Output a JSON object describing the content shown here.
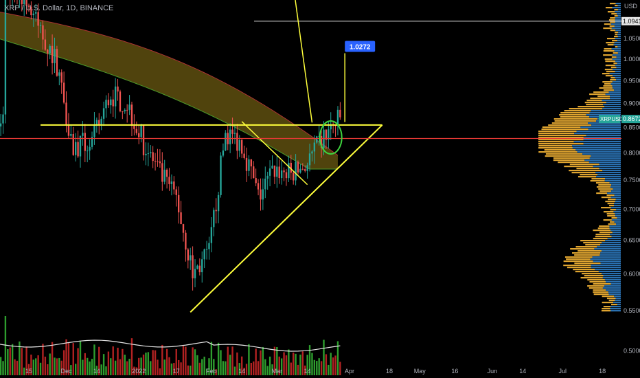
{
  "header": {
    "title": "XRP / U.S. Dollar, 1D, BINANCE",
    "currency": "USD"
  },
  "colors": {
    "background": "#000000",
    "up": "#26a69a",
    "down": "#ef5350",
    "vol_up": "#2e9e2e",
    "vol_down": "#b22222",
    "pattern": "#ffff3b",
    "support": "#e53935",
    "volume_profile_up": "#e0a530",
    "volume_profile_down": "#2f7dc4",
    "cloud": "#6b5a12",
    "callout": "#2962ff"
  },
  "chart_data": {
    "type": "candlestick",
    "title": "XRP / U.S. Dollar, 1D, BINANCE",
    "y_axis": {
      "scale": "log",
      "ticks": [
        "1.0500",
        "1.0000",
        "0.9500",
        "0.9000",
        "0.8500",
        "0.8000",
        "0.7500",
        "0.7000",
        "0.6500",
        "0.6000",
        "0.5500",
        "0.5000"
      ],
      "tick_values": [
        1.05,
        1.0,
        0.95,
        0.9,
        0.85,
        0.8,
        0.75,
        0.7,
        0.65,
        0.6,
        0.55,
        0.5
      ]
    },
    "x_axis": {
      "ticks": [
        "15",
        "Dec",
        "14",
        "2022",
        "17",
        "Feb",
        "14",
        "Mar",
        "14",
        "Apr",
        "18",
        "May",
        "16",
        "Jun",
        "14",
        "Jul",
        "18"
      ],
      "tick_dates": [
        "2021-11-15",
        "2021-12-01",
        "2021-12-14",
        "2022-01-01",
        "2022-01-17",
        "2022-02-01",
        "2022-02-14",
        "2022-03-01",
        "2022-03-14",
        "2022-04-01",
        "2022-04-18",
        "2022-05-01",
        "2022-05-16",
        "2022-06-01",
        "2022-06-14",
        "2022-07-01",
        "2022-07-18"
      ]
    },
    "last_price": {
      "symbol": "XRPUSD",
      "value": "0.8672"
    },
    "level_label": {
      "value": "1.0941",
      "price": 1.0941
    },
    "target_label": {
      "value": "1.0272",
      "price": 1.0272
    },
    "horizontal_resistance": 0.855,
    "red_support": 0.828,
    "triangle": {
      "lower_start": {
        "date": "2022-01-23",
        "price": 0.548
      },
      "apex": {
        "date": "2022-04-15",
        "price": 0.855
      },
      "upper_start": {
        "date": "2021-11-20",
        "price": 0.855
      }
    },
    "inner_wedge": {
      "from": {
        "date": "2022-02-14",
        "price": 0.862
      },
      "to": {
        "date": "2022-03-14",
        "price": 0.742
      }
    },
    "measured_move": {
      "date": "2022-03-30",
      "from_price": 0.861,
      "to_price": 1.0272
    },
    "candles_summary": {
      "start": "2021-11-01",
      "end": "2022-03-28",
      "approx_path": [
        {
          "date": "2021-11-05",
          "close": 1.2
        },
        {
          "date": "2021-11-12",
          "close": 1.17
        },
        {
          "date": "2021-11-20",
          "close": 1.07
        },
        {
          "date": "2021-11-27",
          "close": 0.99
        },
        {
          "date": "2021-12-04",
          "close": 0.81
        },
        {
          "date": "2021-12-12",
          "close": 0.82
        },
        {
          "date": "2021-12-20",
          "close": 0.92
        },
        {
          "date": "2021-12-27",
          "close": 0.9
        },
        {
          "date": "2022-01-03",
          "close": 0.82
        },
        {
          "date": "2022-01-10",
          "close": 0.76
        },
        {
          "date": "2022-01-17",
          "close": 0.72
        },
        {
          "date": "2022-01-24",
          "close": 0.6
        },
        {
          "date": "2022-01-31",
          "close": 0.63
        },
        {
          "date": "2022-02-07",
          "close": 0.84
        },
        {
          "date": "2022-02-14",
          "close": 0.82
        },
        {
          "date": "2022-02-21",
          "close": 0.72
        },
        {
          "date": "2022-02-28",
          "close": 0.77
        },
        {
          "date": "2022-03-07",
          "close": 0.76
        },
        {
          "date": "2022-03-14",
          "close": 0.78
        },
        {
          "date": "2022-03-21",
          "close": 0.83
        },
        {
          "date": "2022-03-28",
          "close": 0.867
        }
      ]
    }
  }
}
